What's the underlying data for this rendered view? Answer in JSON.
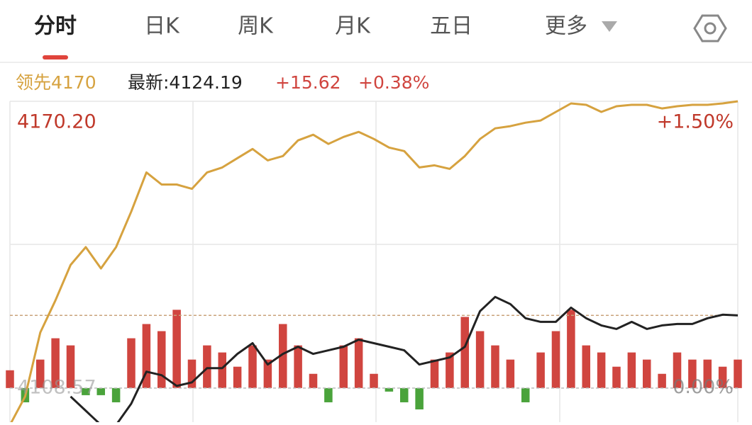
{
  "tabs": [
    "分时",
    "日K",
    "周K",
    "月K",
    "五日",
    "更多"
  ],
  "info": {
    "lead": "领先4170",
    "latest": "最新:4124.19",
    "change": "+15.62",
    "percent": "+0.38%"
  },
  "chart_data": {
    "type": "line",
    "x": [
      0,
      5,
      10,
      15,
      20,
      25,
      30,
      35,
      40,
      45,
      50,
      55,
      60,
      65,
      70,
      75,
      80,
      85,
      90,
      95,
      100,
      105,
      110,
      115,
      120,
      125,
      130,
      135,
      140,
      145,
      150,
      155,
      160,
      165,
      170,
      175,
      180,
      185,
      190,
      195,
      200,
      205,
      210,
      215,
      220,
      225,
      230,
      235,
      240
    ],
    "xlim": [
      0,
      240
    ],
    "ylim": [
      4101.24,
      4170.2
    ],
    "yticks": [
      {
        "value": 4170.2,
        "label": "4170.20"
      },
      {
        "value": 4108.57,
        "label": "4108.57"
      }
    ],
    "y2lim": [
      -0.18,
      1.5
    ],
    "y2ticks": [
      {
        "value": 1.5,
        "label": "+1.50%"
      },
      {
        "value": 0,
        "label": "0.00%"
      }
    ],
    "reference": 4124.19,
    "series": [
      {
        "color": "#d6a23f",
        "values": [
          4100.63,
          4106.75,
          4120.51,
          4127.39,
          4135.03,
          4138.86,
          4134.27,
          4138.86,
          4146.5,
          4154.91,
          4152.31,
          4152.31,
          4151.39,
          4154.91,
          4155.98,
          4157.97,
          4159.96,
          4157.51,
          4158.43,
          4161.79,
          4163.01,
          4161.03,
          4162.55,
          4163.63,
          4162.1,
          4160.26,
          4159.5,
          4155.98,
          4156.44,
          4155.67,
          4158.43,
          4162.1,
          4164.39,
          4164.85,
          4165.61,
          4166.07,
          4167.91,
          4169.74,
          4169.44,
          4167.91,
          4169.13,
          4169.44,
          4169.44,
          4168.67,
          4169.13,
          4169.44,
          4169.44,
          4169.74,
          4170.2
        ]
      },
      {
        "color": "#222222",
        "values": [
          null,
          null,
          null,
          null,
          4106.75,
          4103.69,
          4100.63,
          4100.63,
          4105.22,
          4112.1,
          4111.33,
          4109.04,
          4109.8,
          4112.86,
          4112.86,
          4115.92,
          4118.21,
          4113.63,
          4115.92,
          4117.45,
          4115.92,
          4116.68,
          4117.45,
          4118.98,
          4118.21,
          4117.45,
          4116.68,
          4113.63,
          4114.39,
          4115.16,
          4117.45,
          4125.09,
          4128.15,
          4126.62,
          4123.57,
          4122.8,
          4122.8,
          4125.86,
          4123.57,
          4122.04,
          4121.27,
          4122.8,
          4121.27,
          4122.04,
          4122.34,
          4122.34,
          4123.57,
          4124.33,
          4124.19
        ]
      }
    ],
    "bars": {
      "up_color": "#d0453f",
      "down_color": "#4aa33b",
      "values": [
        3.82,
        -3.06,
        6.12,
        10.7,
        9.17,
        -1.53,
        -1.53,
        -3.06,
        10.7,
        13.76,
        12.23,
        16.82,
        6.12,
        9.17,
        7.65,
        4.59,
        9.17,
        6.12,
        13.76,
        9.17,
        3.06,
        -3.06,
        9.17,
        10.7,
        3.06,
        -0.76,
        -3.06,
        -4.59,
        6.12,
        7.65,
        15.29,
        12.23,
        9.17,
        6.12,
        -3.06,
        7.65,
        12.23,
        16.82,
        9.17,
        7.65,
        4.59,
        7.65,
        6.12,
        3.06,
        7.65,
        6.12,
        6.12,
        4.59,
        6.12
      ]
    }
  }
}
